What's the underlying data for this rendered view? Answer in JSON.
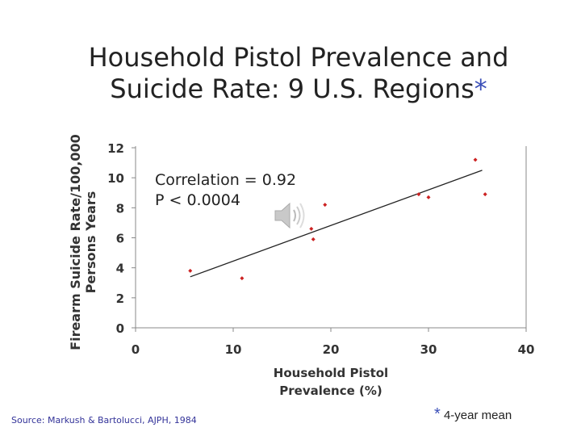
{
  "title": {
    "line1": "Household Pistol Prevalence and",
    "line2": "Suicide Rate: 9 U.S. Regions",
    "asterisk": "*"
  },
  "annotation": {
    "correlation": "Correlation = 0.92",
    "p_value": "P < 0.0004"
  },
  "source": "Source: Markush & Bartolucci, AJPH, 1984",
  "footnote": {
    "star": "*",
    "text": "4-year mean"
  },
  "icons": {
    "speaker": "speaker-icon"
  },
  "colors": {
    "marker": "#cc2222",
    "trendline": "#222222",
    "asterisk": "#3b4fb8"
  },
  "chart_data": {
    "type": "scatter",
    "ylabel_line1": "Firearm Suicide Rate/100,000",
    "ylabel_line2": "Persons Years",
    "xlabel_line1": "Household Pistol",
    "xlabel_line2": "Prevalence (%)",
    "xlim": [
      0,
      40
    ],
    "ylim": [
      0,
      12
    ],
    "xticks": [
      0,
      10,
      20,
      30,
      40
    ],
    "yticks": [
      0,
      2,
      4,
      6,
      8,
      10,
      12
    ],
    "series": [
      {
        "name": "Regions",
        "x": [
          5.6,
          10.9,
          18,
          18.2,
          19.4,
          29,
          30,
          34.8,
          35.8
        ],
        "y": [
          3.8,
          3.3,
          6.6,
          5.9,
          8.2,
          8.9,
          8.7,
          11.2,
          8.9
        ]
      }
    ],
    "trendline": {
      "x": [
        5.6,
        35.5
      ],
      "y": [
        3.4,
        10.5
      ]
    }
  }
}
